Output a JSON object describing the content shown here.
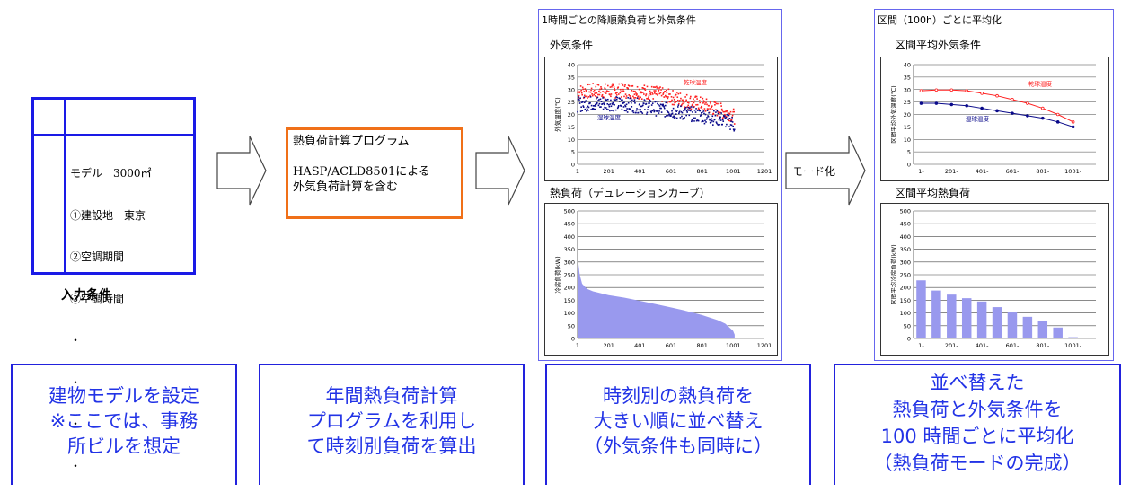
{
  "input": {
    "lines": [
      "モデル　3000㎡",
      "①建設地　東京",
      "②空調期間",
      "③空調時間",
      "・",
      "・",
      "・",
      "・"
    ],
    "caption": "入力条件"
  },
  "program": {
    "title": "熱負荷計算プログラム",
    "line1": "HASP/ACLD8501による",
    "line2": "外気負荷計算を含む"
  },
  "mode_label": "モード化",
  "panel1": {
    "title": "1時間ごとの降順熱負荷と外気条件",
    "chart1_label": "外気条件",
    "chart2_label": "熱負荷（デュレーションカーブ）"
  },
  "panel2": {
    "title": "区間（100h）ごとに平均化",
    "chart1_label": "区間平均外気条件",
    "chart2_label": "区間平均熱負荷"
  },
  "bottom": [
    {
      "l1": "建物モデルを設定",
      "l2": "※ここでは、事務",
      "l3": "所ビルを想定"
    },
    {
      "l1": "年間熱負荷計算",
      "l2": "プログラムを利用し",
      "l3": "て時刻別負荷を算出"
    },
    {
      "l1": "時刻別の熱負荷を",
      "l2": "大きい順に並べ替え",
      "l3": "（外気条件も同時に）"
    },
    {
      "l1": "並べ替えた",
      "l2": "熱負荷と外気条件を",
      "l3": "100 時間ごとに平均化",
      "l4": "（熱負荷モードの完成）"
    }
  ],
  "chart_data": [
    {
      "type": "scatter",
      "ylabel": "外気温度(℃)",
      "ylim": [
        0,
        40
      ],
      "yticks": [
        "0",
        "5",
        "10",
        "15",
        "20",
        "25",
        "30",
        "35",
        "40"
      ],
      "xticks": [
        "1",
        "201",
        "401",
        "601",
        "801",
        "1001",
        "1201"
      ],
      "series": [
        {
          "name": "乾球温度",
          "color": "#ff2020",
          "x": [
            1,
            100,
            200,
            300,
            400,
            500,
            600,
            700,
            800,
            900,
            1000,
            1010
          ],
          "y": [
            29,
            29.5,
            29.5,
            29.5,
            29.3,
            28.5,
            27,
            25.5,
            24,
            22,
            20,
            18
          ]
        },
        {
          "name": "湿球温度",
          "color": "#0a0a8a",
          "x": [
            1,
            100,
            200,
            300,
            400,
            500,
            600,
            700,
            800,
            900,
            1000,
            1010
          ],
          "y": [
            24,
            24.5,
            24.5,
            24,
            23.5,
            22.5,
            21.5,
            20.5,
            19.5,
            18.5,
            16.5,
            15
          ]
        }
      ]
    },
    {
      "type": "area",
      "ylabel": "冷房負荷(kW)",
      "ylim": [
        0,
        500
      ],
      "yticks": [
        "0",
        "50",
        "100",
        "150",
        "200",
        "250",
        "300",
        "350",
        "400",
        "450",
        "500"
      ],
      "xticks": [
        "1",
        "201",
        "401",
        "601",
        "801",
        "1001",
        "1201"
      ],
      "x": [
        1,
        5,
        15,
        30,
        60,
        100,
        200,
        300,
        400,
        500,
        600,
        700,
        800,
        900,
        950,
        1000,
        1010
      ],
      "y": [
        400,
        300,
        250,
        215,
        195,
        185,
        170,
        160,
        148,
        135,
        122,
        108,
        92,
        72,
        58,
        30,
        15
      ],
      "color": "#9999ee"
    },
    {
      "type": "line",
      "ylabel": "区間平均外気温度(℃)",
      "ylim": [
        0,
        40
      ],
      "yticks": [
        "0",
        "5",
        "10",
        "15",
        "20",
        "25",
        "30",
        "35",
        "40"
      ],
      "categories": [
        "1-",
        "101-",
        "201-",
        "301-",
        "401-",
        "501-",
        "601-",
        "701-",
        "801-",
        "901-",
        "1001-"
      ],
      "xtick_labels": [
        "1-",
        "201-",
        "401-",
        "601-",
        "801-",
        "1001-"
      ],
      "series": [
        {
          "name": "乾球温度",
          "color": "#ff2020",
          "values": [
            29.5,
            29.8,
            29.8,
            29.5,
            28.5,
            27.5,
            26,
            24.5,
            22.5,
            20,
            17
          ]
        },
        {
          "name": "湿球温度",
          "color": "#0a0a8a",
          "values": [
            24.5,
            24.5,
            24,
            23.5,
            22.5,
            21.5,
            20.5,
            19.5,
            18.5,
            17,
            15
          ]
        }
      ]
    },
    {
      "type": "bar",
      "ylabel": "区間平均冷房負荷(kW)",
      "ylim": [
        0,
        500
      ],
      "yticks": [
        "0",
        "50",
        "100",
        "150",
        "200",
        "250",
        "300",
        "350",
        "400",
        "450",
        "500"
      ],
      "categories": [
        "1-",
        "101-",
        "201-",
        "301-",
        "401-",
        "501-",
        "601-",
        "701-",
        "801-",
        "901-",
        "1001-"
      ],
      "xtick_labels": [
        "1-",
        "201-",
        "401-",
        "601-",
        "801-",
        "1001-"
      ],
      "values": [
        228,
        188,
        172,
        158,
        145,
        123,
        102,
        85,
        67,
        43,
        5
      ],
      "color": "#9999ee"
    }
  ]
}
